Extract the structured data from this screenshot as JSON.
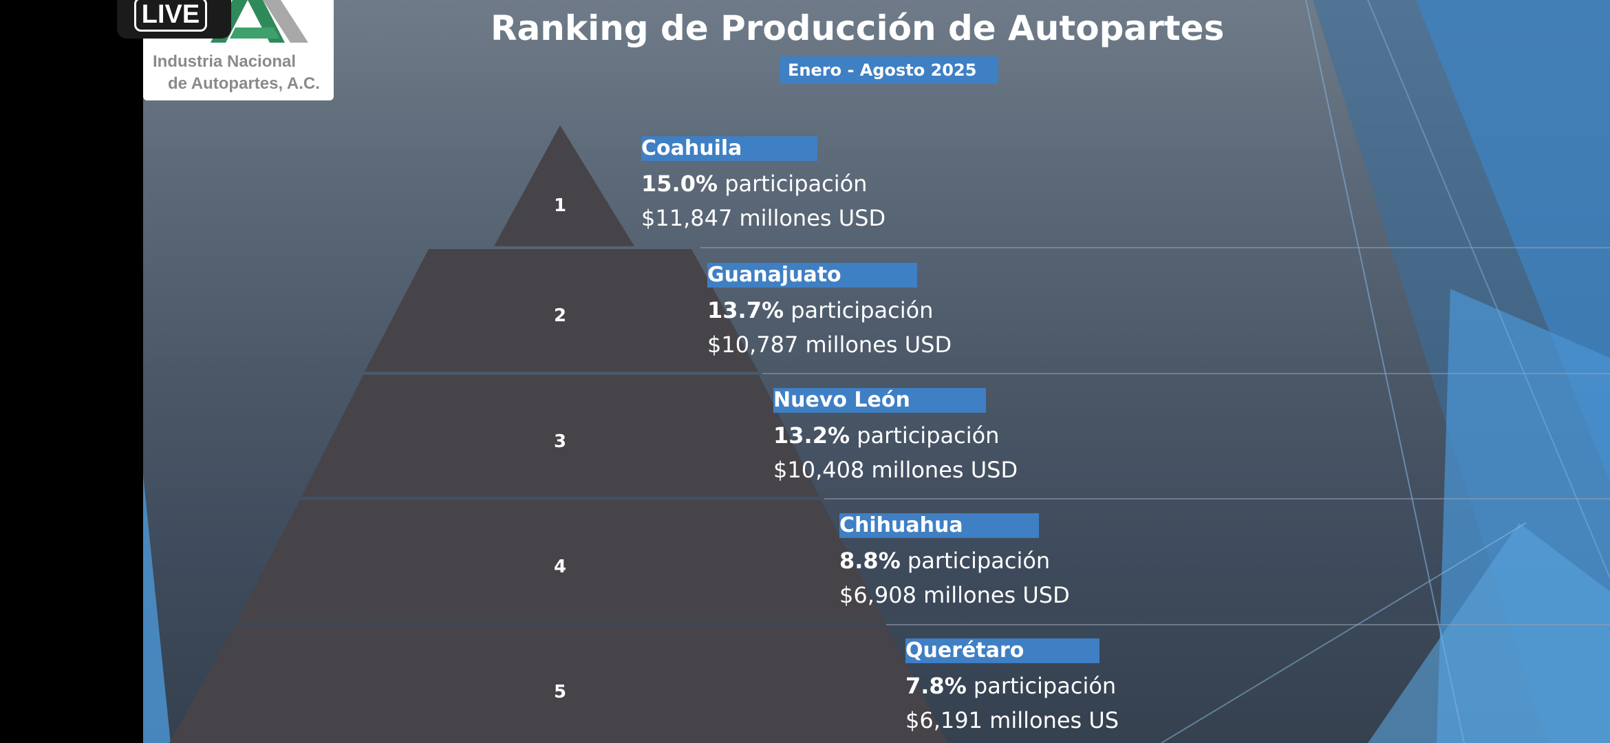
{
  "overlay": {
    "live_label": "LIVE"
  },
  "logo": {
    "line1": "Industria Nacional",
    "line2": "de Autopartes, A.C."
  },
  "slide": {
    "title": "Ranking de Producción de Autopartes",
    "subtitle": "Enero - Agosto 2025",
    "ranking": [
      {
        "rank": "1",
        "state": "Coahuila",
        "share": "15.0%",
        "share_suffix": " participación",
        "value": "$11,847 millones USD"
      },
      {
        "rank": "2",
        "state": "Guanajuato",
        "share": "13.7%",
        "share_suffix": " participación",
        "value": "$10,787 millones USD"
      },
      {
        "rank": "3",
        "state": "Nuevo León",
        "share": "13.2%",
        "share_suffix": " participación",
        "value": "$10,408 millones USD"
      },
      {
        "rank": "4",
        "state": "Chihuahua",
        "share": "8.8%",
        "share_suffix": " participación",
        "value": "$6,908 millones USD"
      },
      {
        "rank": "5",
        "state": "Querétaro",
        "share": "7.8%",
        "share_suffix": " participación",
        "value": "$6,191 millones US"
      }
    ]
  },
  "colors": {
    "pyramid": "#464449",
    "highlight": "#3f7fc4",
    "accent_blue": "#3d84c6"
  }
}
